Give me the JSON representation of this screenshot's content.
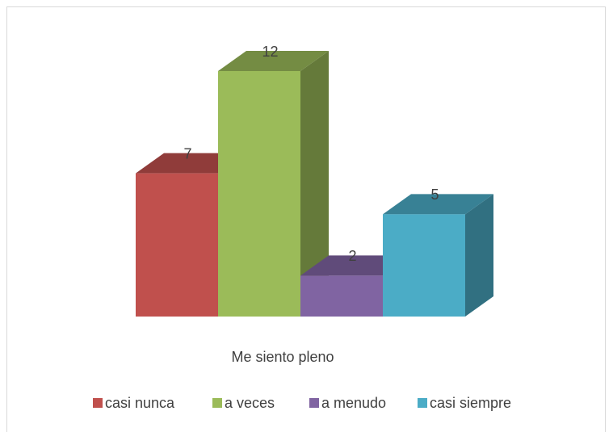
{
  "chart_data": {
    "type": "bar3d",
    "categories": [
      "Me siento pleno"
    ],
    "series": [
      {
        "name": "casi nunca",
        "color": "#c0504d",
        "values": [
          7
        ]
      },
      {
        "name": "a veces",
        "color": "#9bbb59",
        "values": [
          12
        ]
      },
      {
        "name": "a menudo",
        "color": "#8064a2",
        "values": [
          2
        ]
      },
      {
        "name": "casi siempre",
        "color": "#4bacc6",
        "values": [
          5
        ]
      }
    ],
    "legend": "bottom"
  }
}
